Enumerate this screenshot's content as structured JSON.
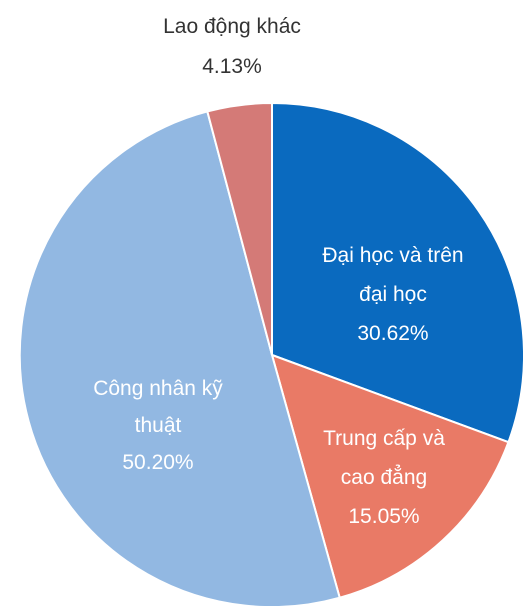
{
  "chart_data": {
    "type": "pie",
    "start_angle_deg": 0,
    "direction": "clockwise",
    "slices": [
      {
        "lines": [
          "Đại học và trên",
          "đại học",
          "30.62%"
        ],
        "value": 30.62,
        "color": "#0A6ABF"
      },
      {
        "lines": [
          "Trung cấp và",
          "cao đẳng",
          "15.05%"
        ],
        "value": 15.05,
        "color": "#E97A66"
      },
      {
        "lines": [
          "Công nhân kỹ",
          "thuật",
          "50.20%"
        ],
        "value": 50.2,
        "color": "#92B8E2"
      },
      {
        "lines": [
          "Lao động khác",
          "4.13%"
        ],
        "value": 4.13,
        "color": "#D47A77"
      }
    ]
  }
}
